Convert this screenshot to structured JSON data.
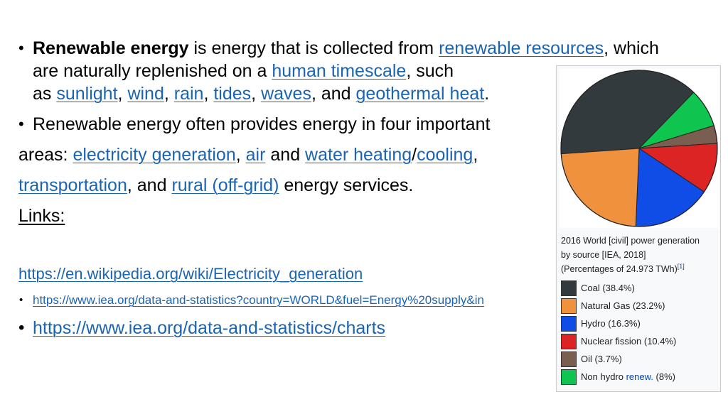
{
  "bullets": {
    "b1": {
      "bold": "Renewable energy",
      "t1": " is energy that is collected from ",
      "l1": "renewable resources",
      "t2": ", which",
      "line2_t": "are naturally replenished on a ",
      "line2_l": "human timescale",
      "line2_t2": ", such",
      "line3_t": "as ",
      "links3": [
        "sunlight",
        "wind",
        "rain",
        "tides",
        "waves"
      ],
      "comma": ",",
      "and": ", and ",
      "l_geo": "geothermal heat",
      "dot": "."
    },
    "b2": {
      "t1": "Renewable energy often provides energy in four important",
      "line2_t": "areas: ",
      "l_elec": "electricity generation",
      "sep1": ",",
      "l_air": "air",
      "and": " and ",
      "l_water": "water heating",
      "slash": "/",
      "l_cool": "cooling",
      "sep2": ",",
      "l_trans": "transportation",
      "and2": ", and ",
      "l_rural": "rural (off-grid)",
      "t_end": " energy services."
    },
    "links_label": "Links:",
    "url1": "https://en.wikipedia.org/wiki/Electricity_generation",
    "url2": "https://www.iea.org/data-and-statistics?country=WORLD&fuel=Energy%20supply&in",
    "url3": "https://www.iea.org/data-and-statistics/charts"
  },
  "bullet_glyph": "•",
  "figure": {
    "caption_l1": "2016 World [civil] power generation",
    "caption_l2": "by source [IEA, 2018]",
    "caption_l3": "(Percentages of 24.973 TWh)",
    "caption_ref": "[1]",
    "legend": [
      {
        "label": "Coal (38.4%)",
        "color": "#323a3d"
      },
      {
        "label": "Natural Gas (23.2%)",
        "color": "#ef913d"
      },
      {
        "label": "Hydro (16.3%)",
        "color": "#0f4de6"
      },
      {
        "label": "Nuclear fission (10.4%)",
        "color": "#dc2424"
      },
      {
        "label": "Oil (3.7%)",
        "color": "#7a5e4f"
      },
      {
        "label_pre": "Non hydro ",
        "label_link": "renew.",
        "label_post": " (8%)",
        "color": "#10c450"
      }
    ]
  },
  "chart_data": {
    "type": "pie",
    "categories": [
      "Coal",
      "Natural Gas",
      "Hydro",
      "Nuclear fission",
      "Oil",
      "Non hydro renew."
    ],
    "values": [
      38.4,
      23.2,
      16.3,
      10.4,
      3.7,
      8
    ],
    "colors": [
      "#323a3d",
      "#ef913d",
      "#0f4de6",
      "#dc2424",
      "#7a5e4f",
      "#10c450"
    ],
    "title": "2016 World [civil] power generation by source [IEA, 2018] (Percentages of 24.973 TWh)",
    "legend_placement": "bottom"
  }
}
